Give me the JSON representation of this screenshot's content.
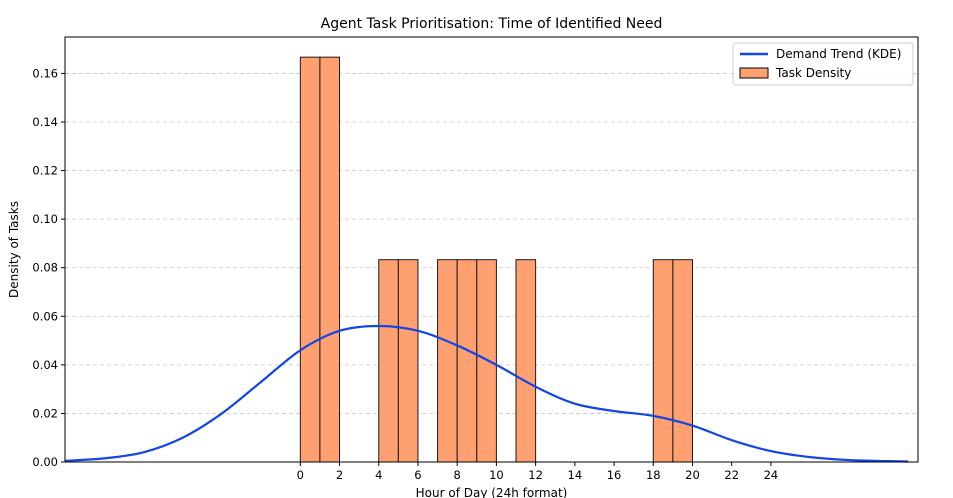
{
  "chart_data": {
    "type": "bar",
    "title": "Agent Task Prioritisation: Time of Identified Need",
    "xlabel": "Hour of Day (24h format)",
    "ylabel": "Density of Tasks",
    "xlim": [
      -12,
      31.5
    ],
    "ylim": [
      0,
      0.175
    ],
    "xticks": [
      0,
      2,
      4,
      6,
      8,
      10,
      12,
      14,
      16,
      18,
      20,
      22,
      24
    ],
    "yticks": [
      0.0,
      0.02,
      0.04,
      0.06,
      0.08,
      0.1,
      0.12,
      0.14,
      0.16
    ],
    "grid": "horizontal dashed",
    "legend_position": "top-right",
    "bins": [
      {
        "x0": 0,
        "x1": 1,
        "value": 0.1667
      },
      {
        "x0": 1,
        "x1": 2,
        "value": 0.1667
      },
      {
        "x0": 4,
        "x1": 5,
        "value": 0.0833
      },
      {
        "x0": 5,
        "x1": 6,
        "value": 0.0833
      },
      {
        "x0": 7,
        "x1": 8,
        "value": 0.0833
      },
      {
        "x0": 8,
        "x1": 9,
        "value": 0.0833
      },
      {
        "x0": 9,
        "x1": 10,
        "value": 0.0833
      },
      {
        "x0": 11,
        "x1": 12,
        "value": 0.0833
      },
      {
        "x0": 18,
        "x1": 19,
        "value": 0.0833
      },
      {
        "x0": 19,
        "x1": 20,
        "value": 0.0833
      }
    ],
    "series": [
      {
        "name": "Demand Trend (KDE)",
        "type": "line",
        "color": "#1446e6",
        "x": [
          -12,
          -10,
          -8,
          -6,
          -4,
          -2,
          0,
          2,
          4,
          6,
          8,
          10,
          12,
          14,
          16,
          18,
          20,
          22,
          24,
          26,
          28,
          31
        ],
        "y": [
          0.0005,
          0.0015,
          0.004,
          0.01,
          0.02,
          0.033,
          0.046,
          0.054,
          0.056,
          0.054,
          0.048,
          0.04,
          0.031,
          0.024,
          0.021,
          0.019,
          0.015,
          0.009,
          0.0045,
          0.002,
          0.0008,
          0.0002
        ]
      },
      {
        "name": "Task Density",
        "type": "bar",
        "color": "#ffa070"
      }
    ]
  }
}
